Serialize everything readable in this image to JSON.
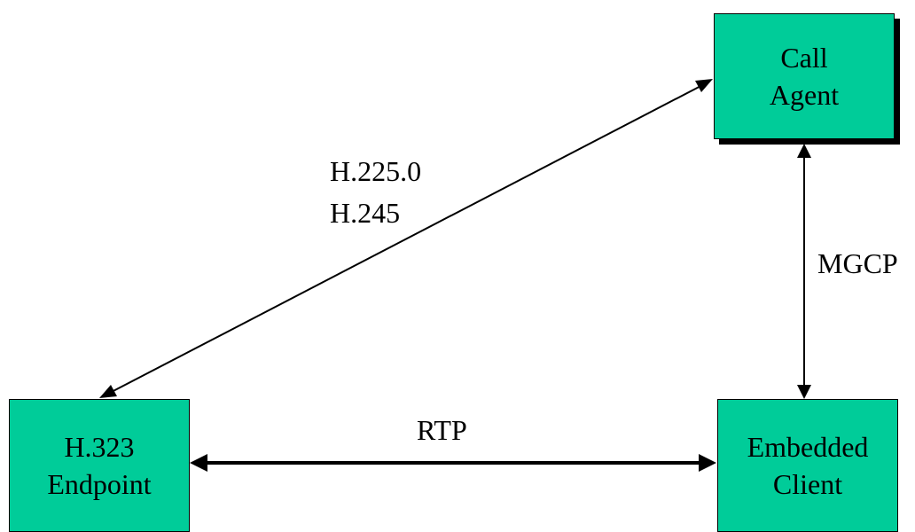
{
  "nodes": {
    "call_agent": {
      "line1": "Call",
      "line2": "Agent"
    },
    "h323_endpoint": {
      "line1": "H.323",
      "line2": "Endpoint"
    },
    "embedded_client": {
      "line1": "Embedded",
      "line2": "Client"
    }
  },
  "links": {
    "h323_to_call_agent": {
      "line1": "H.225.0",
      "line2": "H.245"
    },
    "call_agent_to_client": {
      "label": "MGCP"
    },
    "endpoint_to_client": {
      "label": "RTP"
    }
  },
  "colors": {
    "node_fill": "#00cc99",
    "line": "#000000",
    "background": "#ffffff"
  }
}
